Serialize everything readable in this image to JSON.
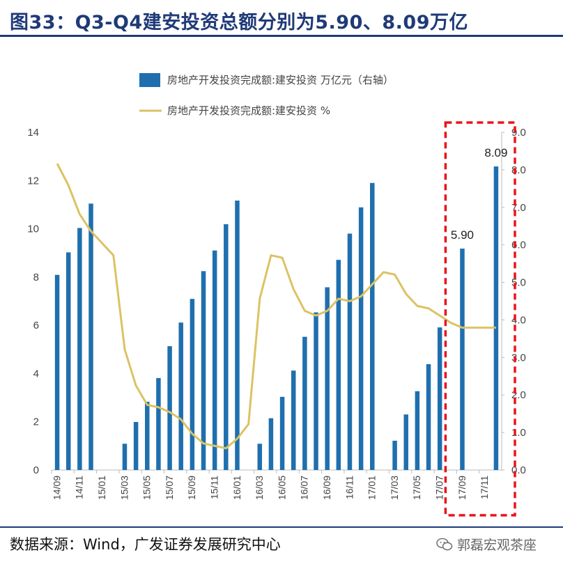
{
  "header": {
    "title": "图33：Q3-Q4建安投资总额分别为5.90、8.09万亿"
  },
  "footer": {
    "source": "数据来源：Wind，广发证券发展研究中心",
    "watermark": "郭磊宏观茶座"
  },
  "chart_data": {
    "type": "bar",
    "title": "图33：Q3-Q4建安投资总额分别为5.90、8.09万亿",
    "legend": [
      {
        "name": "房地产开发投资完成额:建安投资 万亿元（右轴）",
        "kind": "bar",
        "color": "#1f6fae"
      },
      {
        "name": "房地产开发投资完成额:建安投资 %",
        "kind": "line",
        "color": "#dcc264"
      }
    ],
    "categories": [
      "14/09",
      "14/10",
      "14/11",
      "14/12",
      "15/01",
      "15/02",
      "15/03",
      "15/04",
      "15/05",
      "15/06",
      "15/07",
      "15/08",
      "15/09",
      "15/10",
      "15/11",
      "15/12",
      "16/01",
      "16/02",
      "16/03",
      "16/04",
      "16/05",
      "16/06",
      "16/07",
      "16/08",
      "16/09",
      "16/10",
      "16/11",
      "16/12",
      "17/01",
      "17/02",
      "17/03",
      "17/04",
      "17/05",
      "17/06",
      "17/07",
      "17/08",
      "17/09",
      "17/10",
      "17/11",
      "17/12"
    ],
    "tick_labels": [
      "14/09",
      "14/11",
      "15/01",
      "15/03",
      "15/05",
      "15/07",
      "15/09",
      "15/11",
      "16/01",
      "16/03",
      "16/05",
      "16/07",
      "16/09",
      "16/11",
      "17/01",
      "17/03",
      "17/05",
      "17/07",
      "17/09",
      "17/11"
    ],
    "series": [
      {
        "name": "房地产开发投资完成额:建安投资 万亿元（右轴）",
        "axis": "right",
        "values": [
          5.2,
          5.8,
          6.45,
          7.1,
          null,
          null,
          0.7,
          1.28,
          1.82,
          2.45,
          3.3,
          3.93,
          4.56,
          5.3,
          5.85,
          6.55,
          7.18,
          null,
          0.7,
          1.38,
          1.95,
          2.65,
          3.55,
          4.2,
          4.87,
          5.6,
          6.3,
          7.0,
          7.65,
          null,
          0.78,
          1.48,
          2.1,
          2.82,
          3.8,
          null,
          5.9,
          null,
          null,
          8.09
        ]
      },
      {
        "name": "房地产开发投资完成额:建安投资 %",
        "axis": "left",
        "values": [
          12.7,
          11.8,
          10.6,
          9.9,
          9.4,
          8.9,
          5.0,
          3.5,
          2.7,
          2.6,
          2.4,
          2.1,
          1.5,
          1.1,
          1.0,
          0.9,
          1.3,
          1.9,
          7.1,
          8.9,
          8.8,
          7.5,
          6.6,
          6.4,
          6.6,
          7.1,
          7.0,
          7.2,
          7.7,
          8.2,
          8.1,
          7.3,
          6.8,
          6.7,
          6.4,
          6.1,
          5.9,
          5.9,
          5.9,
          5.9
        ]
      }
    ],
    "y_left": {
      "min": 0,
      "max": 14,
      "ticks": [
        "0",
        "2",
        "4",
        "6",
        "8",
        "10",
        "12",
        "14"
      ]
    },
    "y_right": {
      "min": 0,
      "max": 9,
      "ticks": [
        "0.0",
        "1.0",
        "2.0",
        "3.0",
        "4.0",
        "5.0",
        "6.0",
        "7.0",
        "8.0",
        "9.0"
      ]
    },
    "annotations": [
      {
        "category": "17/09",
        "text": "5.90"
      },
      {
        "category": "17/12",
        "text": "8.09"
      }
    ],
    "highlight": {
      "from": "17/09",
      "to": "17/12",
      "style": "red dashed box"
    }
  }
}
